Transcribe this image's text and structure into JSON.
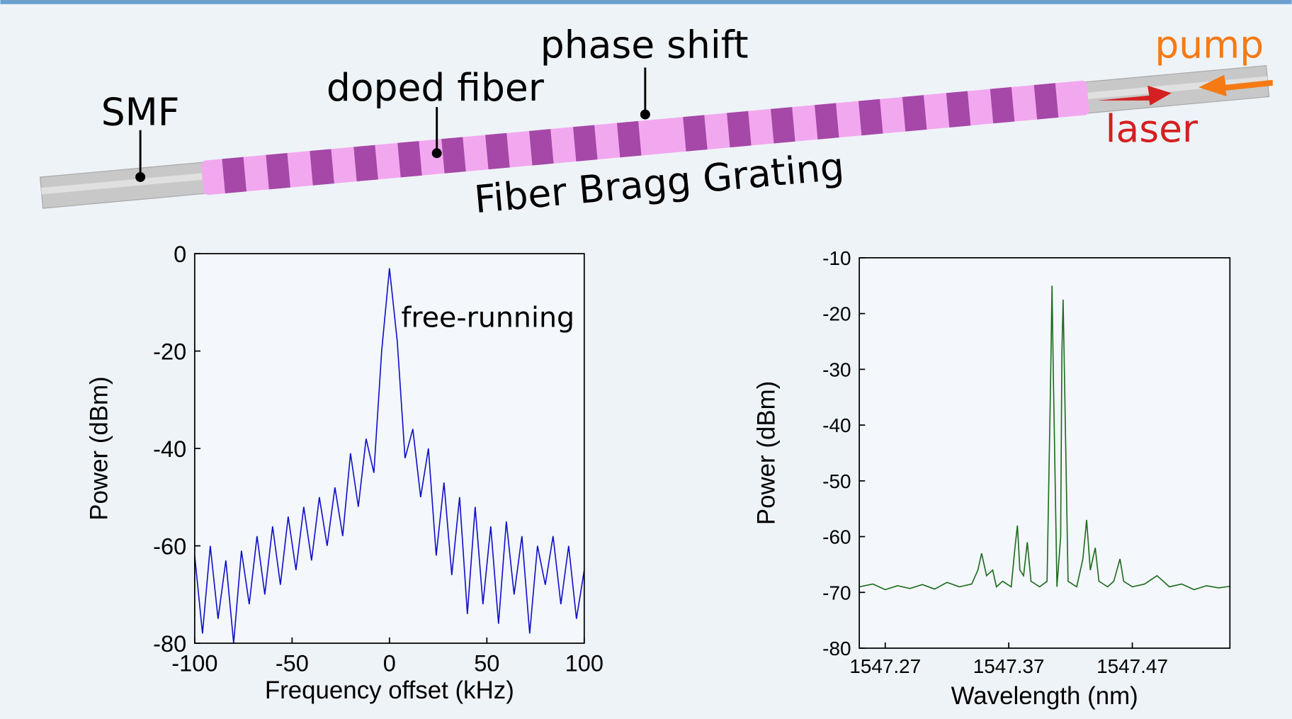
{
  "diagram": {
    "labels": {
      "smf": "SMF",
      "doped": "doped fiber",
      "phase": "phase shift",
      "pump": "pump",
      "laser": "laser",
      "fbg": "Fiber Bragg Grating"
    }
  },
  "chart_data": [
    {
      "type": "line",
      "annotation": "free-running",
      "xlabel": "Frequency offset (kHz)",
      "ylabel": "Power (dBm)",
      "color": "#1010c8",
      "x": [
        -100,
        -96,
        -92,
        -88,
        -84,
        -80,
        -76,
        -72,
        -68,
        -64,
        -60,
        -56,
        -52,
        -48,
        -44,
        -40,
        -36,
        -32,
        -28,
        -24,
        -20,
        -16,
        -12,
        -8,
        -4,
        0,
        4,
        8,
        12,
        16,
        20,
        24,
        28,
        32,
        36,
        40,
        44,
        48,
        52,
        56,
        60,
        64,
        68,
        72,
        76,
        80,
        84,
        88,
        92,
        96,
        100
      ],
      "values": [
        -62,
        -78,
        -60,
        -75,
        -63,
        -80,
        -61,
        -72,
        -58,
        -70,
        -56,
        -68,
        -54,
        -65,
        -52,
        -63,
        -50,
        -60,
        -48,
        -58,
        -41,
        -52,
        -38,
        -45,
        -20,
        -3,
        -18,
        -42,
        -36,
        -50,
        -40,
        -62,
        -47,
        -66,
        -50,
        -74,
        -52,
        -72,
        -56,
        -76,
        -55,
        -70,
        -58,
        -78,
        -60,
        -68,
        -58,
        -72,
        -60,
        -75,
        -65
      ],
      "xlim": [
        -100,
        100
      ],
      "xticks": [
        -100,
        -50,
        0,
        50,
        100
      ],
      "ylim": [
        -80,
        0
      ],
      "yticks": [
        0,
        -20,
        -40,
        -60,
        -80
      ]
    },
    {
      "type": "line",
      "xlabel": "Wavelength (nm)",
      "ylabel": "Power (dBm)",
      "color": "#1e6b1e",
      "x": [
        1547.249,
        1547.26,
        1547.27,
        1547.28,
        1547.29,
        1547.3,
        1547.31,
        1547.32,
        1547.33,
        1547.34,
        1547.345,
        1547.348,
        1547.352,
        1547.357,
        1547.36,
        1547.365,
        1547.372,
        1547.375,
        1547.377,
        1547.379,
        1547.382,
        1547.385,
        1547.388,
        1547.395,
        1547.401,
        1547.404,
        1547.405,
        1547.406,
        1547.409,
        1547.412,
        1547.413,
        1547.414,
        1547.415,
        1547.418,
        1547.425,
        1547.43,
        1547.433,
        1547.436,
        1547.44,
        1547.443,
        1547.45,
        1547.455,
        1547.46,
        1547.463,
        1547.47,
        1547.48,
        1547.49,
        1547.5,
        1547.51,
        1547.52,
        1547.53,
        1547.54,
        1547.549
      ],
      "values": [
        -69,
        -68.5,
        -69.5,
        -68.8,
        -69.3,
        -68.6,
        -69.4,
        -68.2,
        -69,
        -68.5,
        -66,
        -63,
        -67,
        -66,
        -69,
        -68,
        -69,
        -62,
        -58,
        -66,
        -67,
        -61,
        -68,
        -69,
        -68,
        -30,
        -15,
        -30,
        -69,
        -60,
        -27,
        -17.5,
        -30,
        -68,
        -69,
        -64,
        -57,
        -66,
        -62,
        -68,
        -69,
        -68,
        -64,
        -68,
        -69,
        -68.5,
        -67,
        -69,
        -68.5,
        -69.5,
        -68.8,
        -69.2,
        -68.9
      ],
      "xlim": [
        1547.249,
        1547.549
      ],
      "xticks": [
        1547.27,
        1547.37,
        1547.47
      ],
      "ylim": [
        -80,
        -10
      ],
      "yticks": [
        -10,
        -20,
        -30,
        -40,
        -50,
        -60,
        -70,
        -80
      ]
    }
  ]
}
